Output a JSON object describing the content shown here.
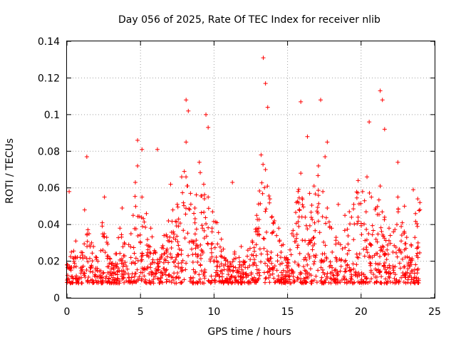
{
  "chart_data": {
    "type": "scatter",
    "title": "Day 056 of 2025, Rate Of TEC Index for receiver nlib",
    "xlabel": "GPS time / hours",
    "ylabel": "ROTI / TECUs",
    "xlim": [
      0,
      25
    ],
    "ylim": [
      0,
      0.14
    ],
    "x_ticks": [
      0,
      5,
      10,
      15,
      20,
      25
    ],
    "x_tick_labels": [
      "0",
      "5",
      "10",
      "15",
      "20",
      "25"
    ],
    "y_ticks": [
      0,
      0.02,
      0.04,
      0.06,
      0.08,
      0.1,
      0.12,
      0.14
    ],
    "y_tick_labels": [
      "0",
      "0.02",
      "0.04",
      "0.06",
      "0.08",
      "0.1",
      "0.12",
      "0.14"
    ],
    "grid": true,
    "marker": "+",
    "series_color": "#ff0000",
    "series": [
      {
        "name": "ROTI",
        "x": [
          0.0,
          0.3,
          0.6,
          0.9,
          1.2,
          1.5,
          1.8,
          2.1,
          2.4,
          2.7,
          3.0,
          3.3,
          3.6,
          3.9,
          4.2,
          4.5,
          4.8,
          5.1,
          5.4,
          5.7,
          6.0,
          6.3,
          6.6,
          6.9,
          7.2,
          7.5,
          7.8,
          8.1,
          8.4,
          8.7,
          9.0,
          9.3,
          9.6,
          9.9,
          10.2,
          10.5,
          10.8,
          11.1,
          11.4,
          11.7,
          12.0,
          12.3,
          12.6,
          12.9,
          13.2,
          13.5,
          13.8,
          14.1,
          14.4,
          14.7,
          15.0,
          15.3,
          15.6,
          15.9,
          16.2,
          16.5,
          16.8,
          17.1,
          17.4,
          17.7,
          18.0,
          18.3,
          18.6,
          18.9,
          19.2,
          19.5,
          19.8,
          20.1,
          20.4,
          20.7,
          21.0,
          21.3,
          21.6,
          21.9,
          22.2,
          22.5,
          22.8,
          23.1,
          23.4,
          23.7,
          24.0,
          0.15,
          1.35,
          2.55,
          4.65,
          4.8,
          5.1,
          6.15,
          8.1,
          8.25,
          9.45,
          9.6,
          11.25,
          13.35,
          13.5,
          13.65,
          15.9,
          16.35,
          17.25,
          17.55,
          17.7,
          20.55,
          21.3,
          21.45,
          21.6,
          22.5,
          23.55,
          23.85,
          3.75,
          7.05,
          11.85,
          12.45,
          14.25,
          18.45,
          19.35,
          22.95
        ],
        "y": [
          0.018,
          0.025,
          0.031,
          0.022,
          0.048,
          0.035,
          0.028,
          0.02,
          0.041,
          0.033,
          0.019,
          0.024,
          0.038,
          0.03,
          0.029,
          0.045,
          0.072,
          0.055,
          0.046,
          0.038,
          0.025,
          0.021,
          0.034,
          0.042,
          0.048,
          0.051,
          0.066,
          0.085,
          0.057,
          0.049,
          0.074,
          0.062,
          0.055,
          0.047,
          0.041,
          0.032,
          0.021,
          0.019,
          0.025,
          0.022,
          0.02,
          0.026,
          0.031,
          0.045,
          0.078,
          0.07,
          0.054,
          0.042,
          0.038,
          0.029,
          0.021,
          0.035,
          0.052,
          0.068,
          0.044,
          0.057,
          0.061,
          0.072,
          0.058,
          0.049,
          0.038,
          0.033,
          0.029,
          0.045,
          0.047,
          0.051,
          0.064,
          0.058,
          0.066,
          0.055,
          0.049,
          0.061,
          0.044,
          0.038,
          0.036,
          0.055,
          0.041,
          0.033,
          0.029,
          0.046,
          0.052,
          0.058,
          0.077,
          0.055,
          0.063,
          0.086,
          0.081,
          0.081,
          0.108,
          0.102,
          0.1,
          0.093,
          0.063,
          0.131,
          0.117,
          0.104,
          0.107,
          0.088,
          0.108,
          0.077,
          0.085,
          0.096,
          0.113,
          0.108,
          0.092,
          0.074,
          0.059,
          0.054,
          0.049,
          0.062,
          0.028,
          0.027,
          0.034,
          0.051,
          0.044,
          0.05
        ]
      }
    ]
  }
}
